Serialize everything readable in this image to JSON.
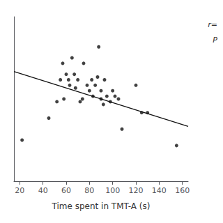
{
  "chart_data": {
    "type": "scatter",
    "xlabel": "Time spent in TMT-A (s)",
    "series": [
      {
        "type": "scatter",
        "color": "#111111",
        "x": [
          22,
          45,
          52,
          55,
          57,
          58,
          60,
          62,
          63,
          65,
          67,
          68,
          70,
          72,
          74,
          75,
          78,
          80,
          82,
          83,
          85,
          87,
          88,
          90,
          90,
          92,
          93,
          95,
          98,
          100,
          102,
          105,
          108,
          120,
          125,
          130,
          155
        ],
        "values": [
          -0.2,
          -0.12,
          -0.06,
          0.02,
          0.08,
          -0.05,
          0.04,
          0.02,
          0.0,
          0.1,
          0.04,
          -0.01,
          0.02,
          -0.06,
          -0.05,
          0.08,
          0.0,
          -0.02,
          0.02,
          -0.04,
          0.0,
          0.03,
          0.14,
          -0.02,
          -0.05,
          -0.07,
          0.02,
          -0.04,
          -0.06,
          -0.02,
          -0.04,
          -0.05,
          -0.16,
          0.0,
          -0.1,
          -0.1,
          -0.22
        ]
      },
      {
        "type": "line",
        "color": "#111111",
        "x": [
          15,
          165
        ],
        "values": [
          0.05,
          -0.15
        ]
      }
    ],
    "xlim": [
      15,
      165
    ],
    "xticks": [
      20,
      40,
      60,
      80,
      100,
      120,
      140,
      160
    ],
    "ylim": [
      -0.35,
      0.25
    ],
    "tick_labels": "x",
    "grid": false,
    "annotations": [
      "r=",
      "P"
    ]
  }
}
